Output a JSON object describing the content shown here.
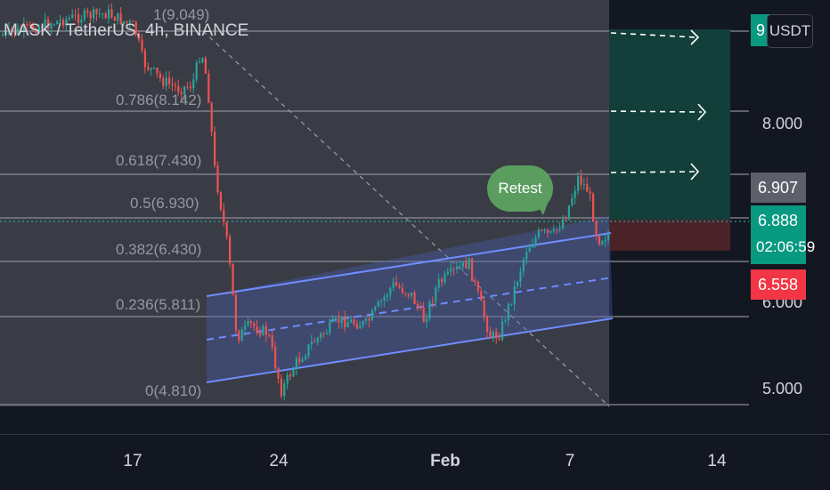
{
  "header": {
    "symbol_title": "MASK / TetherUS, 4h, BINANCE"
  },
  "price_scale": {
    "currency_button": "USDT",
    "top_value_fragment": "9",
    "ticks": [
      "8.000",
      "5.000"
    ],
    "hidden_tick": "6.000",
    "labels": {
      "tp_level": "6.907",
      "last_price": "6.888",
      "countdown": "02:06:59",
      "stop_level": "6.558"
    }
  },
  "time_scale": {
    "ticks": [
      "17",
      "24",
      "Feb",
      "7",
      "14"
    ]
  },
  "fib_levels": [
    {
      "label": "1(9.049)"
    },
    {
      "label": "0.786(8.142)"
    },
    {
      "label": "0.618(7.430)"
    },
    {
      "label": "0.5(6.930)"
    },
    {
      "label": "0.382(6.430)"
    },
    {
      "label": "0.236(5.811)"
    },
    {
      "label": "0(4.810)"
    }
  ],
  "annotation": {
    "retest_label": "Retest"
  },
  "colors": {
    "background": "#131722",
    "up_candle": "#26a69a",
    "down_candle": "#ef5350",
    "channel": "#5b7cf0",
    "target_zone": "#0d3a36",
    "stop_zone": "#3d1f24",
    "label_green": "#089981",
    "label_red": "#f23645",
    "label_grey": "#5d606b"
  }
}
